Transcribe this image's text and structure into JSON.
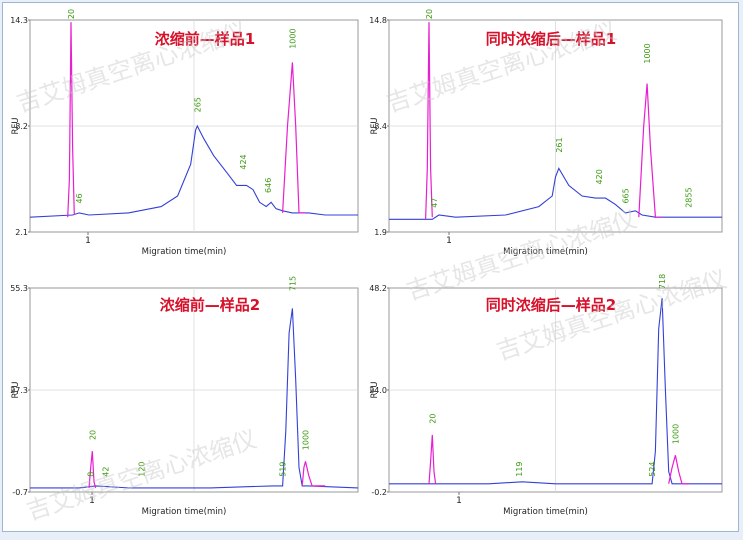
{
  "watermark": "吉艾姆真空离心浓缩仪",
  "colors": {
    "blue_trace": "#3340d8",
    "magenta_trace": "#e81ed2",
    "peak_label": "#3d9a12",
    "title_red": "#d8102a",
    "gridline": "#d9d9d9"
  },
  "chart_data": [
    {
      "type": "line",
      "title": "浓缩前—样品1",
      "xlabel": "Migration time(min)",
      "ylabel": "RFU",
      "ylim": [
        2.1,
        14.3
      ],
      "y_tick_labels": [
        "14.3",
        "8.2",
        "2.1"
      ],
      "x_tick_labels": [
        "1"
      ],
      "peak_labels": [
        "20",
        "46",
        "265",
        "424",
        "646",
        "1000"
      ],
      "grid": true
    },
    {
      "type": "line",
      "title": "同时浓缩后—样品1",
      "xlabel": "Migration time(min)",
      "ylabel": "RFU",
      "ylim": [
        1.9,
        14.8
      ],
      "y_tick_labels": [
        "14.8",
        "8.4",
        "1.9"
      ],
      "x_tick_labels": [
        "1"
      ],
      "peak_labels": [
        "20",
        "47",
        "261",
        "420",
        "665",
        "1000",
        "2855"
      ],
      "grid": true
    },
    {
      "type": "line",
      "title": "浓缩前—样品2",
      "xlabel": "Migration time(min)",
      "ylabel": "RFU",
      "ylim": [
        -0.7,
        55.3
      ],
      "y_tick_labels": [
        "55.3",
        "27.3",
        "-0.7"
      ],
      "x_tick_labels": [
        "1"
      ],
      "peak_labels": [
        "20",
        "8",
        "42",
        "120",
        "715",
        "519",
        "1000"
      ],
      "grid": true
    },
    {
      "type": "line",
      "title": "同时浓缩后—样品2",
      "xlabel": "Migration time(min)",
      "ylabel": "RFU",
      "ylim": [
        -0.2,
        48.2
      ],
      "y_tick_labels": [
        "48.2",
        "24.0",
        "-0.2"
      ],
      "x_tick_labels": [
        "1"
      ],
      "peak_labels": [
        "20",
        "119",
        "718",
        "524",
        "1000"
      ],
      "grid": true
    }
  ]
}
